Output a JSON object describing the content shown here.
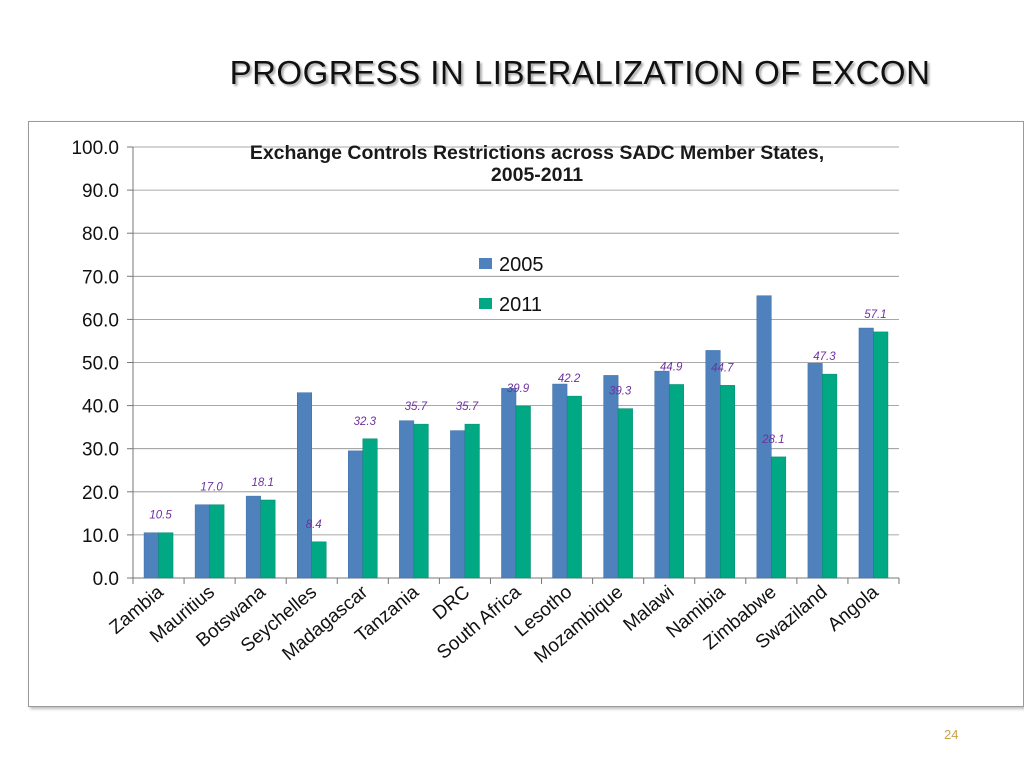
{
  "slide": {
    "title": "PROGRESS IN LIBERALIZATION OF EXCON",
    "page_number": "24"
  },
  "chart_data": {
    "type": "bar",
    "title": "Exchange Controls Restrictions across SADC Member States, 2005-2011",
    "title_lines": [
      "Exchange Controls Restrictions across SADC Member States,",
      "2005-2011"
    ],
    "xlabel": "",
    "ylabel": "",
    "ylim": [
      0,
      100
    ],
    "yticks": [
      "0.0",
      "10.0",
      "20.0",
      "30.0",
      "40.0",
      "50.0",
      "60.0",
      "70.0",
      "80.0",
      "90.0",
      "100.0"
    ],
    "grid": true,
    "legend_position": "top-center",
    "categories": [
      "Zambia",
      "Mauritius",
      "Botswana",
      "Seychelles",
      "Madagascar",
      "Tanzania",
      "DRC",
      "South Africa",
      "Lesotho",
      "Mozambique",
      "Malawi",
      "Namibia",
      "Zimbabwe",
      "Swaziland",
      "Angola"
    ],
    "series": [
      {
        "name": "2005",
        "color": "#4f81bd",
        "values": [
          10.5,
          17.0,
          19.0,
          43.0,
          29.5,
          36.5,
          34.2,
          44.0,
          45.0,
          47.0,
          48.0,
          52.8,
          65.5,
          49.8,
          58.0
        ]
      },
      {
        "name": "2011",
        "color": "#00a884",
        "values": [
          10.5,
          17.0,
          18.1,
          8.4,
          32.3,
          35.7,
          35.7,
          39.9,
          42.2,
          39.3,
          44.9,
          44.7,
          28.1,
          47.3,
          57.1
        ]
      }
    ],
    "data_labels": [
      "10.5",
      "17.0",
      "18.1",
      "8.4",
      "32.3",
      "35.7",
      "35.7",
      "39.9",
      "42.2",
      "39.3",
      "44.9",
      "44.7",
      "28.1",
      "47.3",
      "57.1"
    ],
    "data_label_color": "#7030a0"
  }
}
